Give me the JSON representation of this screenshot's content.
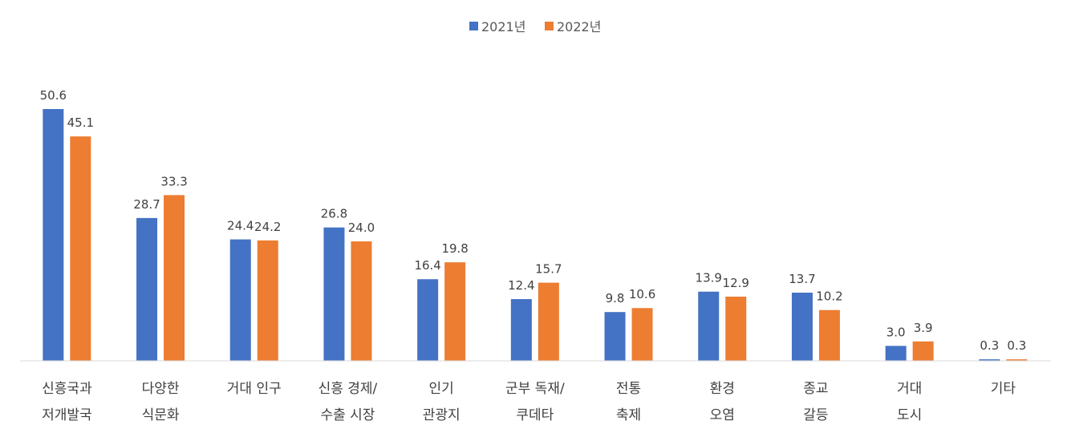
{
  "chart_data": {
    "type": "bar",
    "categories": [
      [
        "신흥국과",
        "저개발국"
      ],
      [
        "다양한",
        "식문화"
      ],
      [
        "거대 인구"
      ],
      [
        "신흥 경제/",
        "수출 시장"
      ],
      [
        "인기",
        "관광지"
      ],
      [
        "군부 독재/",
        "쿠데타"
      ],
      [
        "전통",
        "축제"
      ],
      [
        "환경",
        "오염"
      ],
      [
        "종교",
        "갈등"
      ],
      [
        "거대",
        "도시"
      ],
      [
        "기타"
      ]
    ],
    "series": [
      {
        "name": "2021년",
        "color": "#4472C4",
        "values": [
          50.6,
          28.7,
          24.4,
          26.8,
          16.4,
          12.4,
          9.8,
          13.9,
          13.7,
          3.0,
          0.3
        ],
        "labels": [
          "50.6",
          "28.7",
          "24.4",
          "26.8",
          "16.4",
          "12.4",
          "9.8",
          "13.9",
          "13.7",
          "3.0",
          "0.3"
        ]
      },
      {
        "name": "2022년",
        "color": "#ED7D31",
        "values": [
          45.1,
          33.3,
          24.2,
          24.0,
          19.8,
          15.7,
          10.6,
          12.9,
          10.2,
          3.9,
          0.3
        ],
        "labels": [
          "45.1",
          "33.3",
          "24.2",
          "24.0",
          "19.8",
          "15.7",
          "10.6",
          "12.9",
          "10.2",
          "3.9",
          "0.3"
        ]
      }
    ],
    "ylim": [
      0,
      50.6
    ],
    "grid": false,
    "legend": "top-center"
  }
}
